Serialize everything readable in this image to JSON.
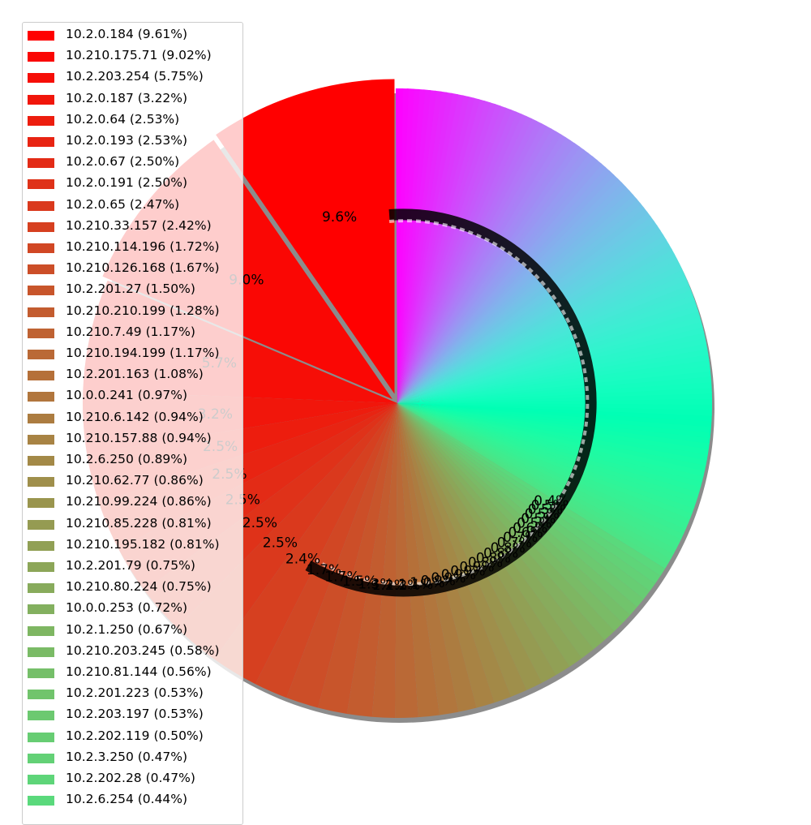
{
  "chart_data": {
    "type": "pie",
    "title": "",
    "legend_position": "top-left",
    "slices": [
      {
        "label": "10.2.0.184",
        "pct": 9.61,
        "legend_text": "10.2.0.184 (9.61%)",
        "pct_text": "9.6%"
      },
      {
        "label": "10.210.175.71",
        "pct": 9.02,
        "legend_text": "10.210.175.71 (9.02%)",
        "pct_text": "9.0%"
      },
      {
        "label": "10.2.203.254",
        "pct": 5.75,
        "legend_text": "10.2.203.254 (5.75%)",
        "pct_text": "5.7%"
      },
      {
        "label": "10.2.0.187",
        "pct": 3.22,
        "legend_text": "10.2.0.187 (3.22%)",
        "pct_text": "3.2%"
      },
      {
        "label": "10.2.0.64",
        "pct": 2.53,
        "legend_text": "10.2.0.64 (2.53%)",
        "pct_text": "2.5%"
      },
      {
        "label": "10.2.0.193",
        "pct": 2.53,
        "legend_text": "10.2.0.193 (2.53%)",
        "pct_text": "2.5%"
      },
      {
        "label": "10.2.0.67",
        "pct": 2.5,
        "legend_text": "10.2.0.67 (2.50%)",
        "pct_text": "2.5%"
      },
      {
        "label": "10.2.0.191",
        "pct": 2.5,
        "legend_text": "10.2.0.191 (2.50%)",
        "pct_text": "2.5%"
      },
      {
        "label": "10.2.0.65",
        "pct": 2.47,
        "legend_text": "10.2.0.65 (2.47%)",
        "pct_text": "2.5%"
      },
      {
        "label": "10.210.33.157",
        "pct": 2.42,
        "legend_text": "10.210.33.157 (2.42%)",
        "pct_text": "2.4%"
      },
      {
        "label": "10.210.114.196",
        "pct": 1.72,
        "legend_text": "10.210.114.196 (1.72%)",
        "pct_text": "1.7%"
      },
      {
        "label": "10.210.126.168",
        "pct": 1.67,
        "legend_text": "10.210.126.168 (1.67%)",
        "pct_text": "1.7%"
      },
      {
        "label": "10.2.201.27",
        "pct": 1.5,
        "legend_text": "10.2.201.27 (1.50%)",
        "pct_text": "1.5%"
      },
      {
        "label": "10.210.210.199",
        "pct": 1.28,
        "legend_text": "10.210.210.199 (1.28%)",
        "pct_text": "1.3%"
      },
      {
        "label": "10.210.7.49",
        "pct": 1.17,
        "legend_text": "10.210.7.49 (1.17%)",
        "pct_text": "1.2%"
      },
      {
        "label": "10.210.194.199",
        "pct": 1.17,
        "legend_text": "10.210.194.199 (1.17%)",
        "pct_text": "1.2%"
      },
      {
        "label": "10.2.201.163",
        "pct": 1.08,
        "legend_text": "10.2.201.163 (1.08%)",
        "pct_text": "1.1%"
      },
      {
        "label": "10.0.0.241",
        "pct": 0.97,
        "legend_text": "10.0.0.241 (0.97%)",
        "pct_text": "1.0%"
      },
      {
        "label": "10.210.6.142",
        "pct": 0.94,
        "legend_text": "10.210.6.142 (0.94%)",
        "pct_text": "0.9%"
      },
      {
        "label": "10.210.157.88",
        "pct": 0.94,
        "legend_text": "10.210.157.88 (0.94%)",
        "pct_text": "0.9%"
      },
      {
        "label": "10.2.6.250",
        "pct": 0.89,
        "legend_text": "10.2.6.250 (0.89%)",
        "pct_text": "0.9%"
      },
      {
        "label": "10.210.62.77",
        "pct": 0.86,
        "legend_text": "10.210.62.77 (0.86%)",
        "pct_text": "0.9%"
      },
      {
        "label": "10.210.99.224",
        "pct": 0.86,
        "legend_text": "10.210.99.224 (0.86%)",
        "pct_text": "0.9%"
      },
      {
        "label": "10.210.85.228",
        "pct": 0.81,
        "legend_text": "10.210.85.228 (0.81%)",
        "pct_text": "0.8%"
      },
      {
        "label": "10.210.195.182",
        "pct": 0.81,
        "legend_text": "10.210.195.182 (0.81%)",
        "pct_text": "0.8%"
      },
      {
        "label": "10.2.201.79",
        "pct": 0.75,
        "legend_text": "10.2.201.79 (0.75%)",
        "pct_text": "0.8%"
      },
      {
        "label": "10.210.80.224",
        "pct": 0.75,
        "legend_text": "10.210.80.224 (0.75%)",
        "pct_text": "0.8%"
      },
      {
        "label": "10.0.0.253",
        "pct": 0.72,
        "legend_text": "10.0.0.253 (0.72%)",
        "pct_text": "0.7%"
      },
      {
        "label": "10.2.1.250",
        "pct": 0.67,
        "legend_text": "10.2.1.250 (0.67%)",
        "pct_text": "0.7%"
      },
      {
        "label": "10.210.203.245",
        "pct": 0.58,
        "legend_text": "10.210.203.245 (0.58%)",
        "pct_text": "0.6%"
      },
      {
        "label": "10.210.81.144",
        "pct": 0.56,
        "legend_text": "10.210.81.144 (0.56%)",
        "pct_text": "0.6%"
      },
      {
        "label": "10.2.201.223",
        "pct": 0.53,
        "legend_text": "10.2.201.223 (0.53%)",
        "pct_text": "0.5%"
      },
      {
        "label": "10.2.203.197",
        "pct": 0.53,
        "legend_text": "10.2.203.197 (0.53%)",
        "pct_text": "0.5%"
      },
      {
        "label": "10.2.202.119",
        "pct": 0.5,
        "legend_text": "10.2.202.119 (0.50%)",
        "pct_text": "0.5%"
      },
      {
        "label": "10.2.3.250",
        "pct": 0.47,
        "legend_text": "10.2.3.250 (0.47%)",
        "pct_text": "0.5%"
      },
      {
        "label": "10.2.202.28",
        "pct": 0.47,
        "legend_text": "10.2.202.28 (0.47%)",
        "pct_text": "0.5%"
      },
      {
        "label": "10.2.6.254",
        "pct": 0.44,
        "legend_text": "10.2.6.254 (0.44%)",
        "pct_text": "0.4%"
      }
    ],
    "colormap": "rainbow (reversed): red to violet",
    "colors": {
      "start": "#ff0000",
      "end": "#8000ff"
    }
  }
}
